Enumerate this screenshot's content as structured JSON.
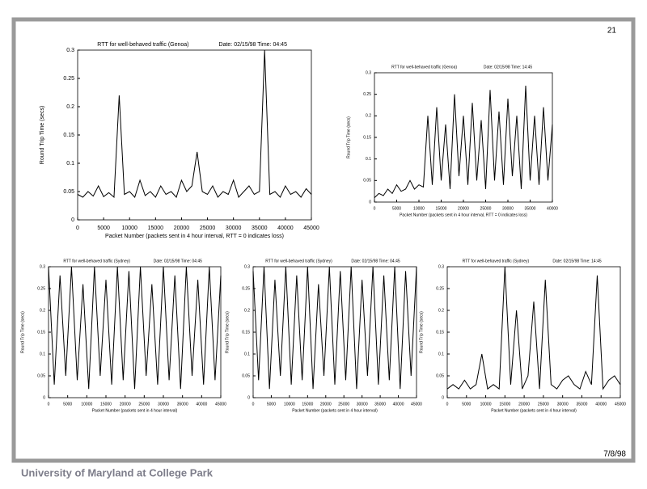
{
  "slide_number": "21",
  "date": "7/8/98",
  "footer": "University of Maryland at College Park",
  "chart_data": [
    {
      "type": "line",
      "title": "RTT for well-behaved traffic (Genoa)",
      "subtitle": "Date: 02/15/98  Time: 04:45",
      "ylabel": "Round Trip Time (secs)",
      "xlabel": "Packet Number (packets sent in 4 hour interval, RTT = 0 indicates loss)",
      "x": [
        0,
        1000,
        2000,
        3000,
        4000,
        5000,
        6000,
        7000,
        8000,
        9000,
        10000,
        11000,
        12000,
        13000,
        14000,
        15000,
        16000,
        17000,
        18000,
        19000,
        20000,
        21000,
        22000,
        23000,
        24000,
        25000,
        26000,
        27000,
        28000,
        29000,
        30000,
        31000,
        32000,
        33000,
        34000,
        35000,
        36000,
        37000,
        38000,
        39000,
        40000,
        41000,
        42000,
        43000,
        44000,
        45000
      ],
      "values": [
        0.045,
        0.04,
        0.05,
        0.042,
        0.06,
        0.041,
        0.048,
        0.04,
        0.22,
        0.045,
        0.05,
        0.04,
        0.07,
        0.043,
        0.05,
        0.04,
        0.06,
        0.045,
        0.05,
        0.04,
        0.07,
        0.05,
        0.06,
        0.12,
        0.05,
        0.045,
        0.06,
        0.04,
        0.05,
        0.045,
        0.07,
        0.04,
        0.05,
        0.06,
        0.045,
        0.05,
        0.3,
        0.045,
        0.05,
        0.04,
        0.06,
        0.045,
        0.05,
        0.04,
        0.055,
        0.045
      ],
      "color": "#000000",
      "xlim": [
        0,
        45000
      ],
      "xticks": [
        0,
        5000,
        10000,
        15000,
        20000,
        25000,
        30000,
        35000,
        40000,
        45000
      ],
      "ylim": [
        0,
        0.3
      ],
      "yticks": [
        0,
        0.05,
        0.1,
        0.15,
        0.2,
        0.25,
        0.3
      ]
    },
    {
      "type": "line",
      "title": "RTT for well-behaved traffic (Genoa)",
      "subtitle": "Date: 02/15/98  Time: 14:45",
      "ylabel": "Round Trip Time (secs)",
      "xlabel": "Packet Number (packets sent in 4 hour interval, RTT = 0 indicates loss)",
      "x": [
        0,
        1000,
        2000,
        3000,
        4000,
        5000,
        6000,
        7000,
        8000,
        9000,
        10000,
        11000,
        12000,
        13000,
        14000,
        15000,
        16000,
        17000,
        18000,
        19000,
        20000,
        21000,
        22000,
        23000,
        24000,
        25000,
        26000,
        27000,
        28000,
        29000,
        30000,
        31000,
        32000,
        33000,
        34000,
        35000,
        36000,
        37000,
        38000,
        39000,
        40000
      ],
      "values": [
        0.01,
        0.02,
        0.015,
        0.03,
        0.02,
        0.04,
        0.025,
        0.03,
        0.05,
        0.03,
        0.04,
        0.035,
        0.2,
        0.04,
        0.22,
        0.05,
        0.18,
        0.03,
        0.25,
        0.06,
        0.2,
        0.04,
        0.23,
        0.05,
        0.19,
        0.03,
        0.26,
        0.05,
        0.21,
        0.04,
        0.24,
        0.06,
        0.2,
        0.03,
        0.27,
        0.05,
        0.2,
        0.04,
        0.22,
        0.05,
        0.18
      ],
      "color": "#000000",
      "xlim": [
        0,
        40000
      ],
      "xticks": [
        0,
        5000,
        10000,
        15000,
        20000,
        25000,
        30000,
        35000,
        40000
      ],
      "ylim": [
        0,
        0.3
      ],
      "yticks": [
        0,
        0.05,
        0.1,
        0.15,
        0.2,
        0.25,
        0.3
      ]
    },
    {
      "type": "line",
      "title": "RTT for well-behaved traffic (Sydney)",
      "subtitle": "Date: 02/15/98  Time: 04:45",
      "ylabel": "Round Trip Time (secs)",
      "xlabel": "Packet Number (packets sent in 4 hour interval)",
      "x": [
        0,
        1500,
        3000,
        4500,
        6000,
        7500,
        9000,
        10500,
        12000,
        13500,
        15000,
        16500,
        18000,
        19500,
        21000,
        22500,
        24000,
        25500,
        27000,
        28500,
        30000,
        31500,
        33000,
        34500,
        36000,
        37500,
        39000,
        40500,
        42000,
        43500,
        45000
      ],
      "values": [
        0.3,
        0.03,
        0.28,
        0.05,
        0.3,
        0.04,
        0.26,
        0.02,
        0.3,
        0.05,
        0.27,
        0.03,
        0.3,
        0.04,
        0.29,
        0.02,
        0.3,
        0.05,
        0.26,
        0.03,
        0.3,
        0.04,
        0.28,
        0.02,
        0.3,
        0.05,
        0.27,
        0.03,
        0.3,
        0.04,
        0.28
      ],
      "color": "#000000",
      "xlim": [
        0,
        45000
      ],
      "xticks": [
        0,
        5000,
        10000,
        15000,
        20000,
        25000,
        30000,
        35000,
        40000,
        45000
      ],
      "ylim": [
        0,
        0.3
      ],
      "yticks": [
        0,
        0.05,
        0.1,
        0.15,
        0.2,
        0.25,
        0.3
      ]
    },
    {
      "type": "line",
      "title": "RTT for well-behaved traffic (Sydney)",
      "subtitle": "Date: 02/15/98  Time: 04:45",
      "ylabel": "Round Trip Time (secs)",
      "xlabel": "Packet Number (packets sent in 4 hour interval)",
      "x": [
        0,
        1500,
        3000,
        4500,
        6000,
        7500,
        9000,
        10500,
        12000,
        13500,
        15000,
        16500,
        18000,
        19500,
        21000,
        22500,
        24000,
        25500,
        27000,
        28500,
        30000,
        31500,
        33000,
        34500,
        36000,
        37500,
        39000,
        40500,
        42000,
        43500,
        45000
      ],
      "values": [
        0.29,
        0.04,
        0.3,
        0.02,
        0.27,
        0.05,
        0.3,
        0.03,
        0.28,
        0.04,
        0.3,
        0.02,
        0.26,
        0.05,
        0.3,
        0.03,
        0.29,
        0.04,
        0.3,
        0.02,
        0.27,
        0.05,
        0.3,
        0.03,
        0.28,
        0.04,
        0.3,
        0.02,
        0.29,
        0.05,
        0.3
      ],
      "color": "#000000",
      "xlim": [
        0,
        45000
      ],
      "xticks": [
        0,
        5000,
        10000,
        15000,
        20000,
        25000,
        30000,
        35000,
        40000,
        45000
      ],
      "ylim": [
        0,
        0.3
      ],
      "yticks": [
        0,
        0.05,
        0.1,
        0.15,
        0.2,
        0.25,
        0.3
      ]
    },
    {
      "type": "line",
      "title": "RTT for well-behaved traffic (Sydney)",
      "subtitle": "Date: 02/15/98  Time: 14:45",
      "ylabel": "Round Trip Time (secs)",
      "xlabel": "Packet Number (packets sent in 4 hour interval)",
      "x": [
        0,
        1500,
        3000,
        4500,
        6000,
        7500,
        9000,
        10500,
        12000,
        13500,
        15000,
        16500,
        18000,
        19500,
        21000,
        22500,
        24000,
        25500,
        27000,
        28500,
        30000,
        31500,
        33000,
        34500,
        36000,
        37500,
        39000,
        40500,
        42000,
        43500,
        45000
      ],
      "values": [
        0.02,
        0.03,
        0.02,
        0.04,
        0.02,
        0.03,
        0.1,
        0.02,
        0.03,
        0.02,
        0.3,
        0.03,
        0.2,
        0.02,
        0.05,
        0.22,
        0.02,
        0.27,
        0.03,
        0.02,
        0.04,
        0.05,
        0.03,
        0.02,
        0.06,
        0.03,
        0.28,
        0.02,
        0.04,
        0.05,
        0.03
      ],
      "color": "#000000",
      "xlim": [
        0,
        45000
      ],
      "xticks": [
        0,
        5000,
        10000,
        15000,
        20000,
        25000,
        30000,
        35000,
        40000,
        45000
      ],
      "ylim": [
        0,
        0.3
      ],
      "yticks": [
        0,
        0.05,
        0.1,
        0.15,
        0.2,
        0.25,
        0.3
      ]
    }
  ]
}
